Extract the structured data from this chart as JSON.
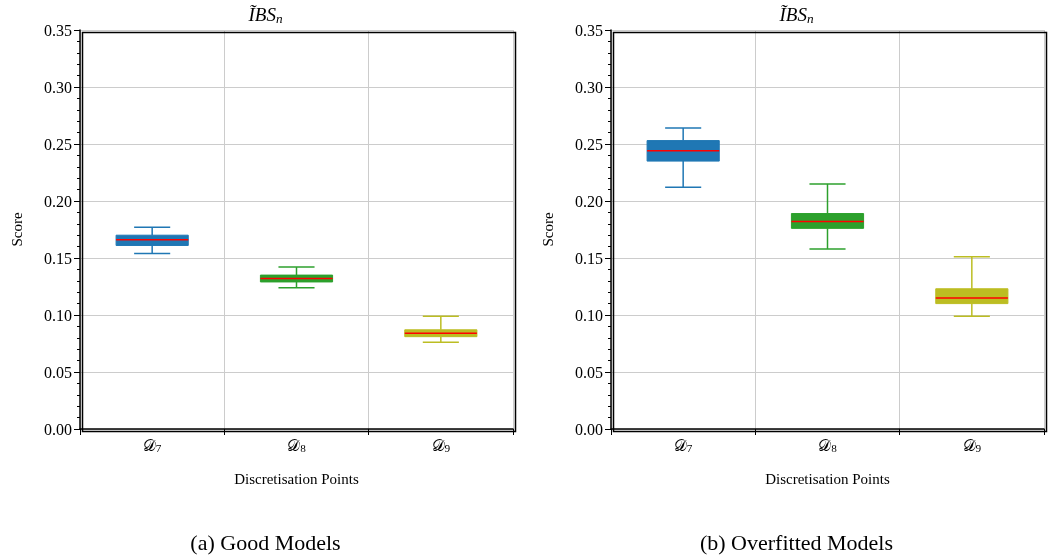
{
  "chart_data": [
    {
      "type": "box",
      "title": "ĨBS$_{n}$",
      "xlabel": "Discretisation Points",
      "ylabel": "Score",
      "categories": [
        "𝒟$_{7}$",
        "𝒟$_{8}$",
        "𝒟$_{9}$"
      ],
      "colors": [
        "#1f77b4",
        "#2ca02c",
        "#bcbd22"
      ],
      "boxes": [
        {
          "low": 0.154,
          "q1": 0.161,
          "median": 0.166,
          "q3": 0.17,
          "high": 0.177
        },
        {
          "low": 0.124,
          "q1": 0.129,
          "median": 0.132,
          "q3": 0.135,
          "high": 0.142
        },
        {
          "low": 0.076,
          "q1": 0.081,
          "median": 0.084,
          "q3": 0.087,
          "high": 0.099
        }
      ],
      "ylim": [
        0,
        0.35
      ],
      "yticks": [
        {
          "value": 0,
          "label": "0.00"
        },
        0.05,
        {
          "value": 0.1,
          "label": "0.10"
        },
        0.15,
        {
          "value": 0.2,
          "label": "0.20"
        },
        0.25,
        {
          "value": 0.3,
          "label": "0.30"
        },
        0.35
      ],
      "grid": true,
      "annotations": [
        "(a) Good Models"
      ]
    },
    {
      "type": "box",
      "title": "ĨBS$_{n}$",
      "xlabel": "Discretisation Points",
      "ylabel": "Score",
      "categories": [
        "𝒟$_{7}$",
        "𝒟$_{8}$",
        "𝒟$_{9}$"
      ],
      "colors": [
        "#1f77b4",
        "#2ca02c",
        "#bcbd22"
      ],
      "boxes": [
        {
          "low": 0.212,
          "q1": 0.235,
          "median": 0.244,
          "q3": 0.253,
          "high": 0.264
        },
        {
          "low": 0.158,
          "q1": 0.176,
          "median": 0.182,
          "q3": 0.189,
          "high": 0.215
        },
        {
          "low": 0.099,
          "q1": 0.11,
          "median": 0.115,
          "q3": 0.123,
          "high": 0.151
        }
      ],
      "ylim": [
        0,
        0.35
      ],
      "yticks": [
        {
          "value": 0,
          "label": "0.00"
        },
        0.05,
        {
          "value": 0.1,
          "label": "0.10"
        },
        0.15,
        {
          "value": 0.2,
          "label": "0.20"
        },
        0.25,
        {
          "value": 0.3,
          "label": "0.30"
        },
        0.35
      ],
      "grid": true,
      "annotations": [
        "(b) Overfitted Models"
      ]
    }
  ]
}
